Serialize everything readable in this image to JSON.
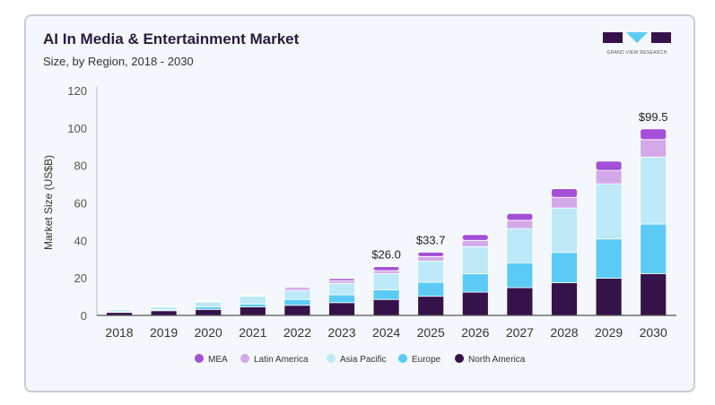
{
  "header": {
    "title": "AI In Media & Entertainment Market",
    "subtitle": "Size, by Region, 2018 - 2030"
  },
  "logo": {
    "text": "GRAND VIEW RESEARCH"
  },
  "chart_data": {
    "type": "bar",
    "stacked": true,
    "title": "AI In Media & Entertainment Market",
    "subtitle": "Size, by Region, 2018 - 2030",
    "xlabel": "",
    "ylabel": "Market Size (US$B)",
    "ylim": [
      0,
      120
    ],
    "yticks": [
      0,
      20,
      40,
      60,
      80,
      100,
      120
    ],
    "grid": false,
    "legend": "bottom",
    "categories": [
      "2018",
      "2019",
      "2020",
      "2021",
      "2022",
      "2023",
      "2024",
      "2025",
      "2026",
      "2027",
      "2028",
      "2029",
      "2030"
    ],
    "series": [
      {
        "name": "North America",
        "color": "#35124a",
        "values": [
          1.6,
          2.5,
          3.2,
          4.5,
          5.4,
          6.8,
          8.5,
          10.2,
          12.4,
          14.8,
          17.4,
          19.8,
          22.3
        ]
      },
      {
        "name": "Europe",
        "color": "#5bcbf5",
        "values": [
          0.3,
          0.5,
          1.3,
          1.6,
          3.1,
          4.2,
          5.2,
          7.5,
          9.8,
          13.3,
          16.2,
          21.0,
          26.4
        ]
      },
      {
        "name": "Asia Pacific",
        "color": "#bde9f9",
        "values": [
          1.3,
          1.7,
          2.6,
          4.1,
          4.6,
          6.1,
          8.6,
          11.3,
          14.5,
          18.2,
          23.7,
          29.4,
          35.8
        ]
      },
      {
        "name": "Latin America",
        "color": "#d3a9ea",
        "values": [
          0.05,
          0.1,
          0.3,
          0.4,
          0.9,
          1.4,
          1.6,
          2.4,
          3.3,
          4.4,
          5.7,
          7.2,
          9.3
        ]
      },
      {
        "name": "MEA",
        "color": "#a550d8",
        "values": [
          0.05,
          0.1,
          0.3,
          0.4,
          0.8,
          1.1,
          2.1,
          2.3,
          3.1,
          3.7,
          4.6,
          4.9,
          5.7
        ]
      }
    ],
    "annotations": [
      {
        "category": "2024",
        "label": "$26.0",
        "value": 26.0
      },
      {
        "category": "2025",
        "label": "$33.7",
        "value": 33.7
      },
      {
        "category": "2030",
        "label": "$99.5",
        "value": 99.5
      }
    ],
    "legend_order": [
      "MEA",
      "Latin America",
      "Asia Pacific",
      "Europe",
      "North America"
    ]
  }
}
